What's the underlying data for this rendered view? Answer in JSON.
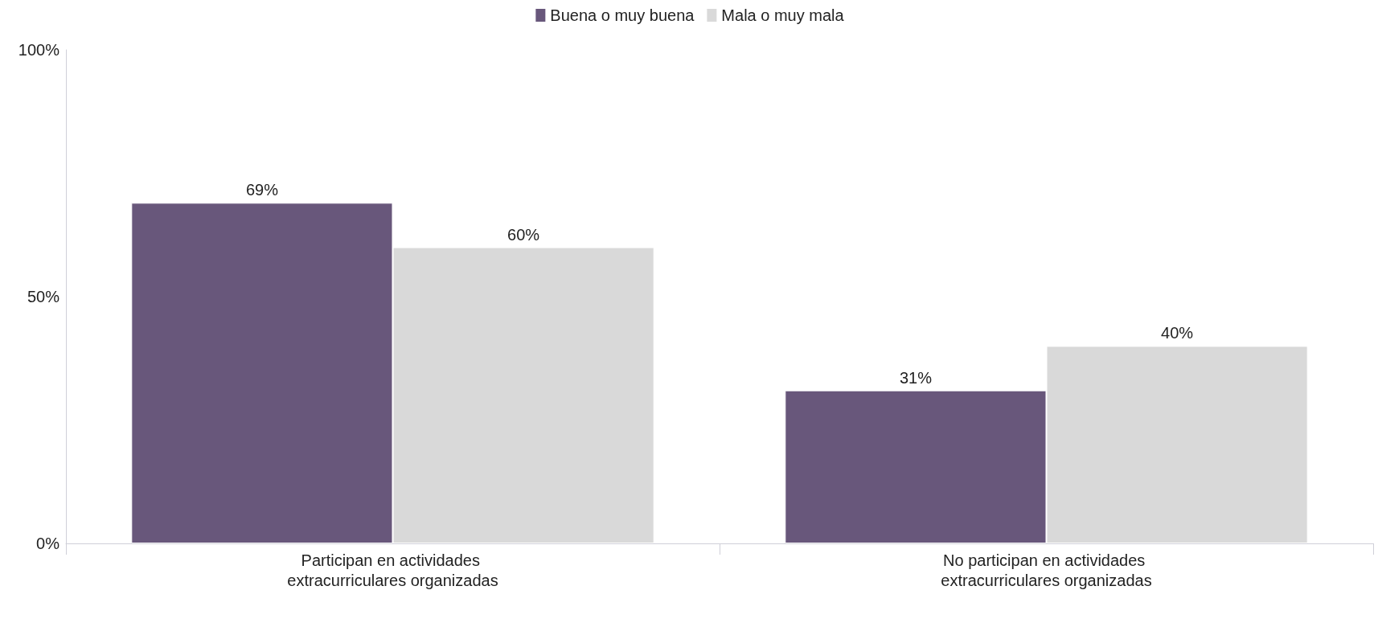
{
  "chart_data": {
    "type": "bar",
    "categories": [
      "Participan en actividades extracurriculares organizadas",
      "No participan en actividades extracurriculares organizadas"
    ],
    "series": [
      {
        "name": "Buena o muy buena",
        "color": "#68577b",
        "values": [
          69,
          31
        ],
        "value_labels": [
          "69%",
          "31%"
        ]
      },
      {
        "name": "Mala o muy mala",
        "color": "#d9d9d9",
        "values": [
          60,
          40
        ],
        "value_labels": [
          "60%",
          "40%"
        ]
      }
    ],
    "ylim": [
      0,
      100
    ],
    "yticks": [
      {
        "value": 0,
        "label": "0%"
      },
      {
        "value": 50,
        "label": "50%"
      },
      {
        "value": 100,
        "label": "100%"
      }
    ],
    "grid": false,
    "legend": "top"
  }
}
